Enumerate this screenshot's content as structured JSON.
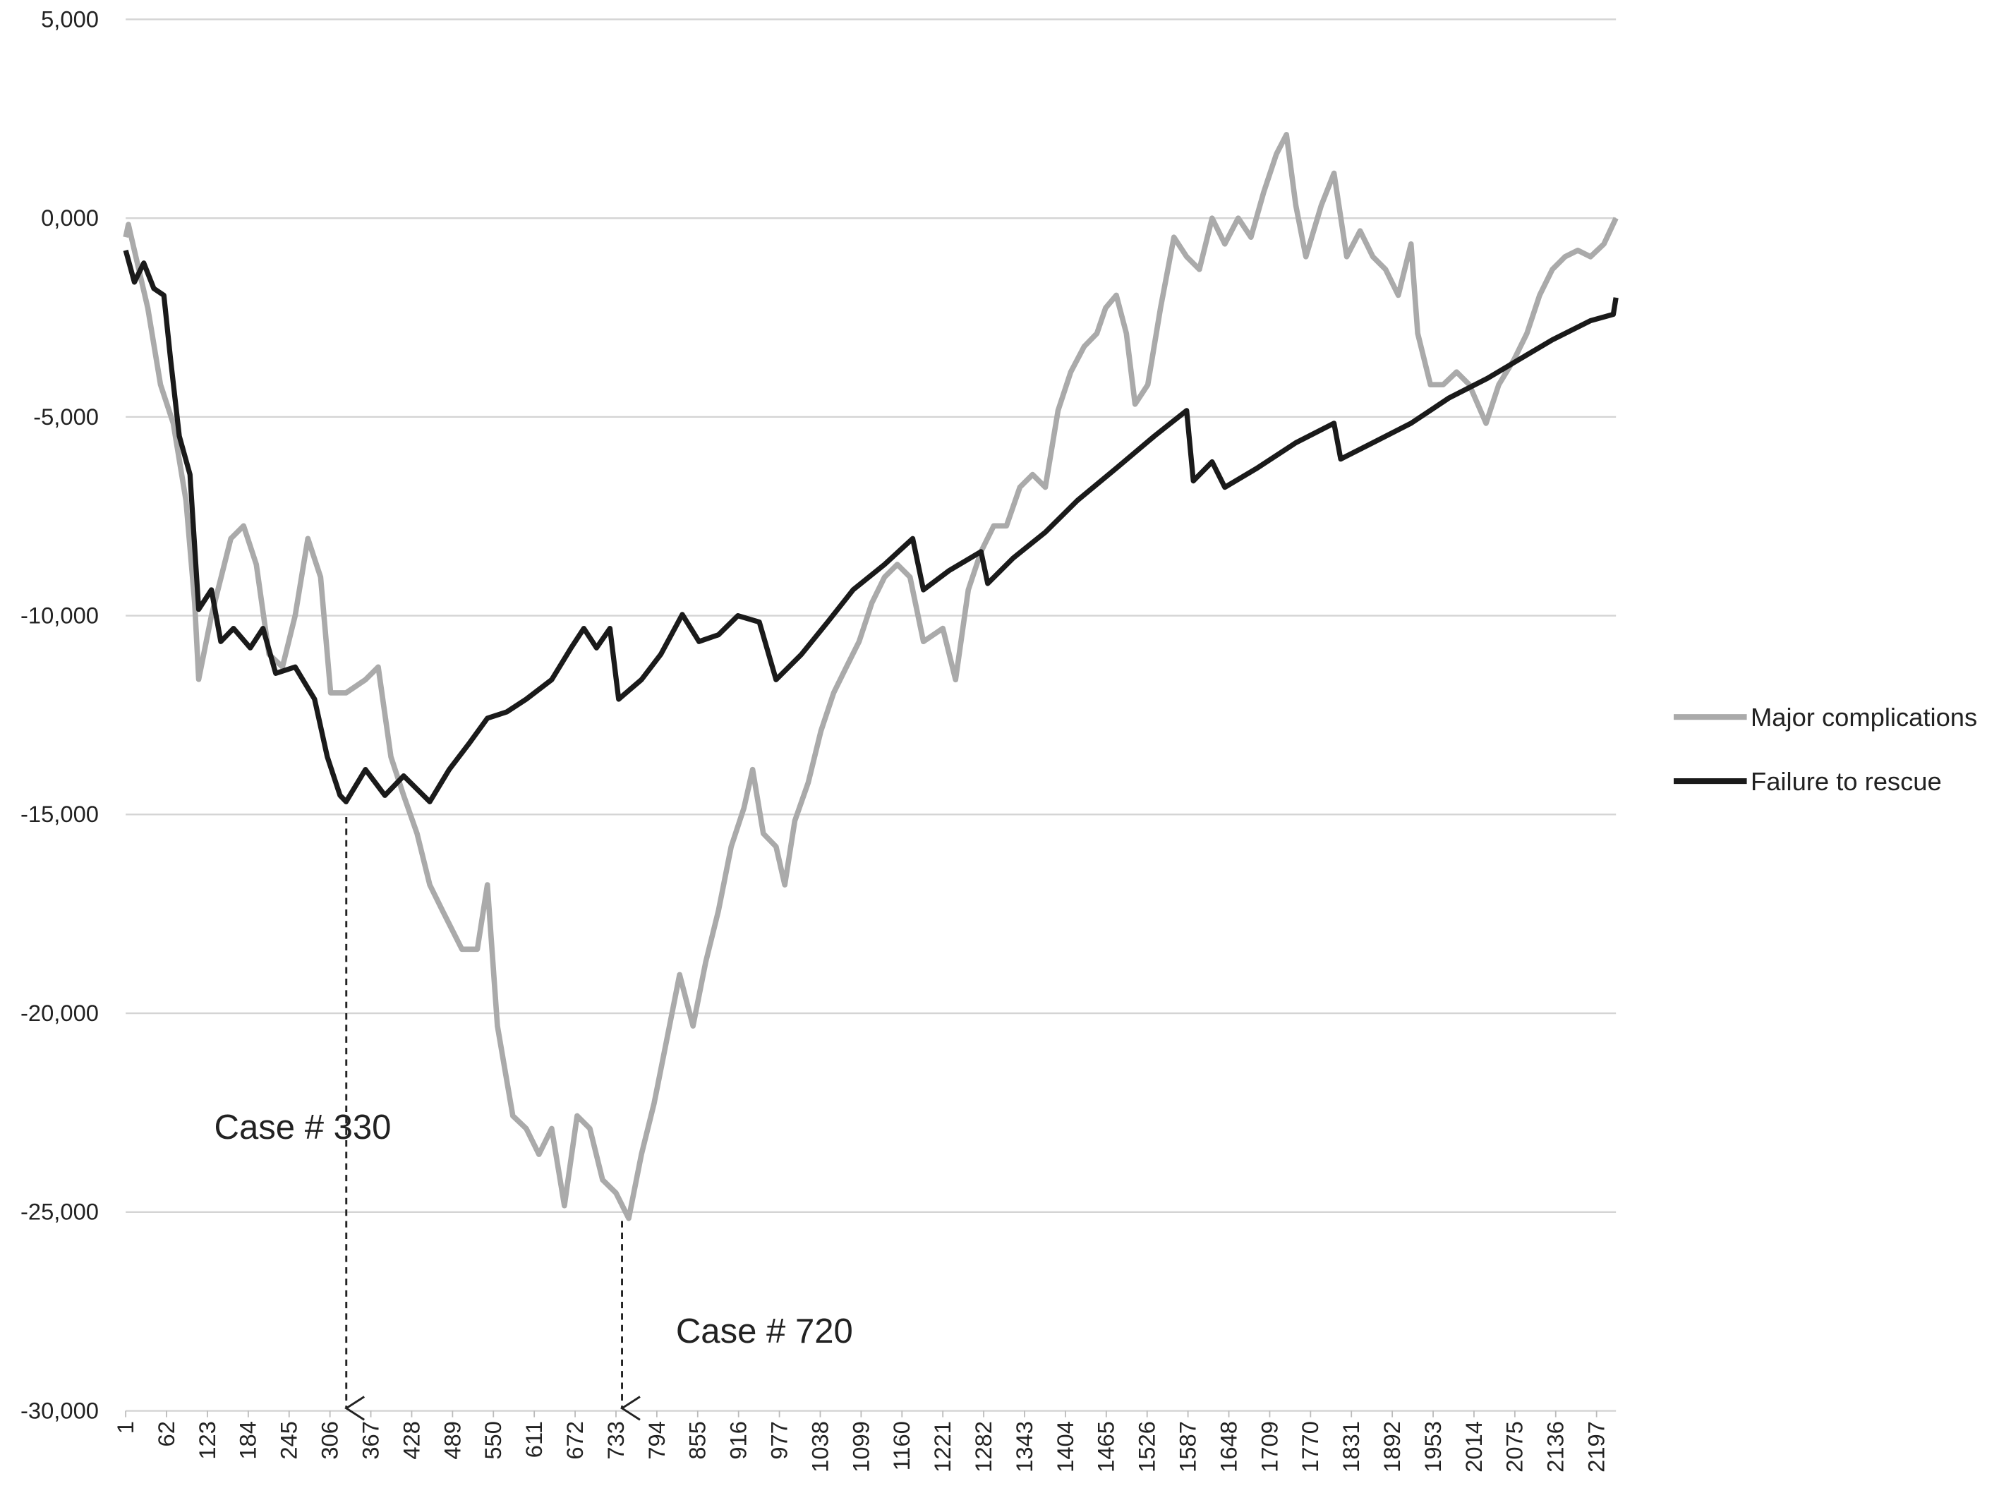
{
  "chart_data": {
    "type": "line",
    "xlim": [
      1,
      2226
    ],
    "ylim": [
      -30000,
      5000
    ],
    "xticks": [
      1,
      62,
      123,
      184,
      245,
      306,
      367,
      428,
      489,
      550,
      611,
      672,
      733,
      794,
      855,
      916,
      977,
      1038,
      1099,
      1160,
      1221,
      1282,
      1343,
      1404,
      1465,
      1526,
      1587,
      1648,
      1709,
      1770,
      1831,
      1892,
      1953,
      2014,
      2075,
      2136,
      2197
    ],
    "yticks": [
      {
        "value": 5000,
        "label": "5,000"
      },
      {
        "value": 0,
        "label": "0,000"
      },
      {
        "value": -5000,
        "label": "-5,000"
      },
      {
        "value": -10000,
        "label": "-10,000"
      },
      {
        "value": -15000,
        "label": "-15,000"
      },
      {
        "value": -20000,
        "label": "-20,000"
      },
      {
        "value": -25000,
        "label": "-25,000"
      },
      {
        "value": -30000,
        "label": "-30,000"
      }
    ],
    "grid": true,
    "legend": "right",
    "annotations": [
      {
        "text": "Case # 330"
      },
      {
        "text": "Case # 720"
      }
    ],
    "series": [
      {
        "name": "Major complications",
        "color": "#aaaaaa",
        "x": [
          1,
          5,
          34,
          53,
          72,
          91,
          104,
          110,
          129,
          158,
          177,
          196,
          215,
          235,
          254,
          273,
          292,
          307,
          330,
          359,
          378,
          397,
          416,
          436,
          455,
          474,
          503,
          526,
          541,
          556,
          579,
          599,
          618,
          637,
          656,
          675,
          694,
          713,
          733,
          752,
          771,
          790,
          809,
          828,
          848,
          867,
          886,
          905,
          924,
          937,
          953,
          972,
          985,
          1000,
          1020,
          1039,
          1058,
          1077,
          1096,
          1115,
          1134,
          1153,
          1172,
          1192,
          1221,
          1240,
          1259,
          1278,
          1297,
          1316,
          1336,
          1355,
          1374,
          1393,
          1412,
          1432,
          1451,
          1464,
          1480,
          1495,
          1508,
          1527,
          1546,
          1566,
          1585,
          1604,
          1623,
          1642,
          1662,
          1681,
          1700,
          1719,
          1734,
          1748,
          1763,
          1786,
          1805,
          1824,
          1844,
          1863,
          1882,
          1901,
          1920,
          1930,
          1949,
          1968,
          1988,
          2007,
          2032,
          2051,
          2074,
          2093,
          2112,
          2131,
          2150,
          2169,
          2188,
          2208,
          2226
        ],
        "values": [
          -480,
          -160,
          -2260,
          -4190,
          -5160,
          -7100,
          -9680,
          -11600,
          -10000,
          -8060,
          -7740,
          -8710,
          -10970,
          -11290,
          -10000,
          -8060,
          -9030,
          -11940,
          -11940,
          -11610,
          -11290,
          -13550,
          -14520,
          -15480,
          -16770,
          -17420,
          -18390,
          -18390,
          -16770,
          -20320,
          -22580,
          -22900,
          -23550,
          -22900,
          -24840,
          -22580,
          -22900,
          -24190,
          -24520,
          -25160,
          -23550,
          -22260,
          -20650,
          -19030,
          -20320,
          -18710,
          -17420,
          -15810,
          -14840,
          -13870,
          -15480,
          -15810,
          -16770,
          -15160,
          -14200,
          -12900,
          -11940,
          -11290,
          -10650,
          -9680,
          -9030,
          -8710,
          -9030,
          -10650,
          -10320,
          -11610,
          -9350,
          -8390,
          -7740,
          -7740,
          -6770,
          -6450,
          -6770,
          -4840,
          -3870,
          -3230,
          -2900,
          -2260,
          -1940,
          -2900,
          -4680,
          -4190,
          -2260,
          -480,
          -970,
          -1290,
          0,
          -650,
          0,
          -480,
          650,
          1610,
          2100,
          320,
          -970,
          320,
          1130,
          -970,
          -320,
          -970,
          -1290,
          -1940,
          -650,
          -2900,
          -4190,
          -4190,
          -3870,
          -4190,
          -5160,
          -4190,
          -3550,
          -2900,
          -1940,
          -1290,
          -970,
          -810,
          -970,
          -650,
          0
        ]
      },
      {
        "name": "Failure to rescue",
        "color": "#1a1a1a",
        "x": [
          1,
          14,
          28,
          43,
          58,
          68,
          81,
          97,
          110,
          129,
          143,
          162,
          187,
          206,
          225,
          254,
          283,
          302,
          321,
          330,
          359,
          388,
          416,
          455,
          484,
          513,
          541,
          570,
          599,
          637,
          666,
          685,
          704,
          724,
          737,
          771,
          800,
          832,
          857,
          886,
          915,
          947,
          972,
          1010,
          1049,
          1087,
          1134,
          1176,
          1192,
          1230,
          1278,
          1288,
          1326,
          1374,
          1422,
          1480,
          1537,
          1585,
          1595,
          1623,
          1642,
          1690,
          1748,
          1805,
          1815,
          1863,
          1920,
          1977,
          2034,
          2082,
          2131,
          2188,
          2222,
          2226
        ],
        "values": [
          -810,
          -1610,
          -1130,
          -1770,
          -1940,
          -3550,
          -5480,
          -6450,
          -9840,
          -9350,
          -10650,
          -10320,
          -10810,
          -10320,
          -11450,
          -11290,
          -12100,
          -13550,
          -14520,
          -14680,
          -13870,
          -14520,
          -14030,
          -14680,
          -13870,
          -13230,
          -12580,
          -12420,
          -12100,
          -11610,
          -10810,
          -10320,
          -10810,
          -10320,
          -12100,
          -11610,
          -10970,
          -9970,
          -10650,
          -10480,
          -10000,
          -10160,
          -11610,
          -10970,
          -10160,
          -9350,
          -8710,
          -8060,
          -9350,
          -8870,
          -8390,
          -9190,
          -8550,
          -7900,
          -7100,
          -6290,
          -5480,
          -4840,
          -6610,
          -6130,
          -6770,
          -6290,
          -5650,
          -5160,
          -6060,
          -5650,
          -5160,
          -4520,
          -4030,
          -3550,
          -3060,
          -2580,
          -2420,
          -2000
        ]
      }
    ]
  }
}
